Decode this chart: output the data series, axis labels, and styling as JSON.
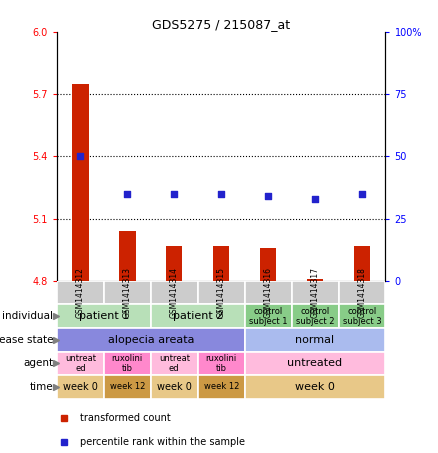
{
  "title": "GDS5275 / 215087_at",
  "samples": [
    "GSM1414312",
    "GSM1414313",
    "GSM1414314",
    "GSM1414315",
    "GSM1414316",
    "GSM1414317",
    "GSM1414318"
  ],
  "bar_values": [
    5.75,
    5.04,
    4.97,
    4.97,
    4.96,
    4.81,
    4.97
  ],
  "dot_values": [
    50,
    35,
    35,
    35,
    34,
    33,
    35
  ],
  "ylim_left": [
    4.8,
    6.0
  ],
  "ylim_right": [
    0,
    100
  ],
  "yticks_left": [
    4.8,
    5.1,
    5.4,
    5.7,
    6.0
  ],
  "yticks_right": [
    0,
    25,
    50,
    75,
    100
  ],
  "hline_values": [
    5.1,
    5.4,
    5.7
  ],
  "bar_color": "#cc2200",
  "dot_color": "#2222cc",
  "bar_bottom": 4.8,
  "row_labels": [
    "individual",
    "disease state",
    "agent",
    "time"
  ],
  "individual_spans": [
    {
      "label": "patient 1",
      "start": 0,
      "end": 2,
      "color": "#b8e0b8",
      "fontsize": 8
    },
    {
      "label": "patient 2",
      "start": 2,
      "end": 4,
      "color": "#b8e0b8",
      "fontsize": 8
    },
    {
      "label": "control\nsubject 1",
      "start": 4,
      "end": 5,
      "color": "#88cc88",
      "fontsize": 6
    },
    {
      "label": "control\nsubject 2",
      "start": 5,
      "end": 6,
      "color": "#88cc88",
      "fontsize": 6
    },
    {
      "label": "control\nsubject 3",
      "start": 6,
      "end": 7,
      "color": "#88cc88",
      "fontsize": 6
    }
  ],
  "disease_spans": [
    {
      "label": "alopecia areata",
      "start": 0,
      "end": 4,
      "color": "#8888dd",
      "fontsize": 8
    },
    {
      "label": "normal",
      "start": 4,
      "end": 7,
      "color": "#aabbee",
      "fontsize": 8
    }
  ],
  "agent_spans": [
    {
      "label": "untreat\ned",
      "start": 0,
      "end": 1,
      "color": "#ffbbdd",
      "fontsize": 6
    },
    {
      "label": "ruxolini\ntib",
      "start": 1,
      "end": 2,
      "color": "#ff88cc",
      "fontsize": 6
    },
    {
      "label": "untreat\ned",
      "start": 2,
      "end": 3,
      "color": "#ffbbdd",
      "fontsize": 6
    },
    {
      "label": "ruxolini\ntib",
      "start": 3,
      "end": 4,
      "color": "#ff88cc",
      "fontsize": 6
    },
    {
      "label": "untreated",
      "start": 4,
      "end": 7,
      "color": "#ffbbdd",
      "fontsize": 8
    }
  ],
  "time_spans": [
    {
      "label": "week 0",
      "start": 0,
      "end": 1,
      "color": "#e8c888",
      "fontsize": 7
    },
    {
      "label": "week 12",
      "start": 1,
      "end": 2,
      "color": "#cc9944",
      "fontsize": 6
    },
    {
      "label": "week 0",
      "start": 2,
      "end": 3,
      "color": "#e8c888",
      "fontsize": 7
    },
    {
      "label": "week 12",
      "start": 3,
      "end": 4,
      "color": "#cc9944",
      "fontsize": 6
    },
    {
      "label": "week 0",
      "start": 4,
      "end": 7,
      "color": "#e8c888",
      "fontsize": 8
    }
  ],
  "sample_box_color": "#cccccc",
  "legend_items": [
    {
      "color": "#cc2200",
      "label": "transformed count"
    },
    {
      "color": "#2222cc",
      "label": "percentile rank within the sample"
    }
  ],
  "figsize": [
    4.38,
    4.53
  ],
  "dpi": 100
}
